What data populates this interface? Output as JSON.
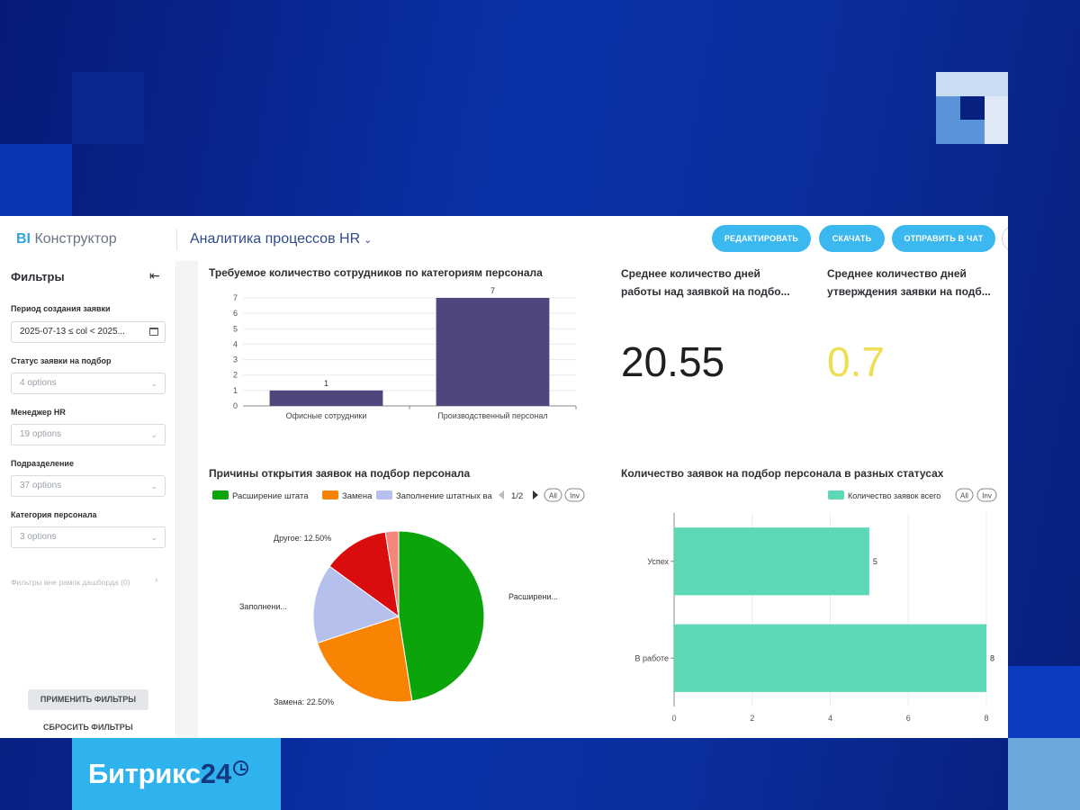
{
  "app": {
    "logo_bi": "BI",
    "logo_name": "Конструктор",
    "report_title": "Аналитика процессов HR",
    "report_chevron": "⌄"
  },
  "toolbar": {
    "edit_label": "РЕДАКТИРОВАТЬ",
    "download_label": "СКАЧАТЬ",
    "send_label": "ОТПРАВИТЬ В ЧАТ"
  },
  "sidebar": {
    "title": "Фильтры",
    "collapse_icon": "⇤",
    "filters": [
      {
        "label": "Период создания заявки",
        "value": "2025-07-13 ≤ col < 2025..."
      },
      {
        "label": "Статус заявки на подбор",
        "value": "4 options"
      },
      {
        "label": "Менеджер HR",
        "value": "19 options"
      },
      {
        "label": "Подразделение",
        "value": "37 options"
      },
      {
        "label": "Категория персонала",
        "value": "3 options"
      }
    ],
    "outside_filters": "Фильтры вне рамок дашборда (0)",
    "apply_label": "ПРИМЕНИТЬ ФИЛЬТРЫ",
    "reset_label": "СБРОСИТЬ ФИЛЬТРЫ"
  },
  "kpis": [
    {
      "title": "Среднее количество дней работы над заявкой на подбо...",
      "value": "20.55",
      "color": "#1d1f22"
    },
    {
      "title": "Среднее количество дней утверждения заявки на подб...",
      "value": "0.7",
      "color": "#ecdf55"
    }
  ],
  "chart_data": [
    {
      "type": "bar",
      "title": "Требуемое количество сотрудников по категориям персонала",
      "categories": [
        "Офисные сотрудники",
        "Производственный персонал"
      ],
      "values": [
        1,
        7
      ],
      "ylim": [
        0,
        7
      ],
      "yticks": [
        "0",
        "1",
        "2",
        "3",
        "4",
        "5",
        "6",
        "7"
      ],
      "color": "#51457d",
      "grid": true
    },
    {
      "type": "pie",
      "title": "Причины открытия заявок на подбор персонала",
      "legend": {
        "items": [
          "Расширение штата",
          "Замена",
          "Заполнение штатных ва"
        ],
        "page": "1/2",
        "all": "All",
        "inv": "Inv"
      },
      "slices": [
        {
          "label": "Расширени...",
          "value": 47.5,
          "color": "#0ba50b"
        },
        {
          "label": "Замена: 22.50%",
          "value": 22.5,
          "color": "#f98303"
        },
        {
          "label": "Заполнени...",
          "value": 15.0,
          "color": "#b5c1ec"
        },
        {
          "label": "Другое: 12.50%",
          "value": 12.5,
          "color": "#d90d0d"
        },
        {
          "label": "",
          "value": 2.5,
          "color": "#f4857a"
        }
      ]
    },
    {
      "type": "bar",
      "orientation": "horizontal",
      "title": "Количество заявок на подбор персонала в разных статусах",
      "legend": {
        "items": [
          "Количество заявок всего"
        ],
        "all": "All",
        "inv": "Inv"
      },
      "categories": [
        "Успех",
        "В работе"
      ],
      "values": [
        5,
        8
      ],
      "xlim": [
        0,
        8
      ],
      "xticks": [
        "0",
        "2",
        "4",
        "6",
        "8"
      ],
      "color": "#5cd8b7",
      "grid": true
    }
  ],
  "brand": {
    "name": "Битрикс",
    "num": "24"
  }
}
